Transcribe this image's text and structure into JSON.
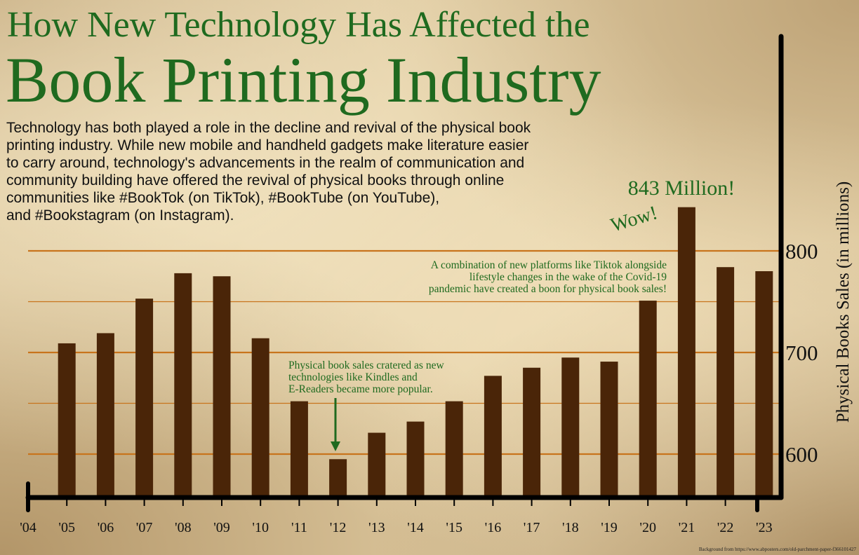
{
  "header": {
    "title_line1": "How New Technology Has Affected the",
    "title_line2": "Book Printing Industry"
  },
  "intro": {
    "lines": [
      "Technology has both played a role in the decline and revival of the physical book",
      "printing industry. While new mobile and handheld gadgets make literature easier",
      "to carry around, technology's advancements in the realm of communication and",
      "community building have offered the revival of physical books through online",
      "communities like #BookTok (on TikTok), #BookTube (on YouTube),",
      "and #Bookstagram (on Instagram)."
    ]
  },
  "chart_data": {
    "type": "bar",
    "categories": [
      "'04",
      "'05",
      "'06",
      "'07",
      "'08",
      "'09",
      "'10",
      "'11",
      "'12",
      "'13",
      "'14",
      "'15",
      "'16",
      "'17",
      "'18",
      "'19",
      "'20",
      "'21",
      "'22",
      "'23"
    ],
    "values": [
      null,
      709,
      719,
      753,
      778,
      775,
      714,
      652,
      595,
      621,
      632,
      652,
      677,
      685,
      695,
      691,
      751,
      843,
      784,
      780
    ],
    "ylabel": "Physical Books Sales (in millions)",
    "yticks": [
      600,
      700,
      800
    ],
    "ylim": [
      560,
      900
    ],
    "y_axis_position": "right",
    "grid": true,
    "colors": {
      "bar": "#4a2508",
      "grid": "#c8741c",
      "axis": "#000000",
      "accent": "#1f6a1f"
    },
    "annotations": [
      {
        "text_lines": [
          "843 Million!"
        ],
        "target": "'21"
      },
      {
        "text_lines": [
          "Wow!"
        ],
        "target": "'21"
      },
      {
        "text_lines": [
          "A combination of new platforms like Tiktok alongside",
          "lifestyle changes in the wake of the Covid-19",
          "pandemic have created a boon for physical book sales!"
        ],
        "target": "'20"
      },
      {
        "text_lines": [
          "Physical book sales cratered as new",
          "technologies like Kindles and",
          "E-Readers became more popular."
        ],
        "target": "'12",
        "arrow": "down"
      }
    ]
  },
  "footer": {
    "credit": "Background from https://www.abposters.com/old-parchment-paper-f366101427"
  }
}
